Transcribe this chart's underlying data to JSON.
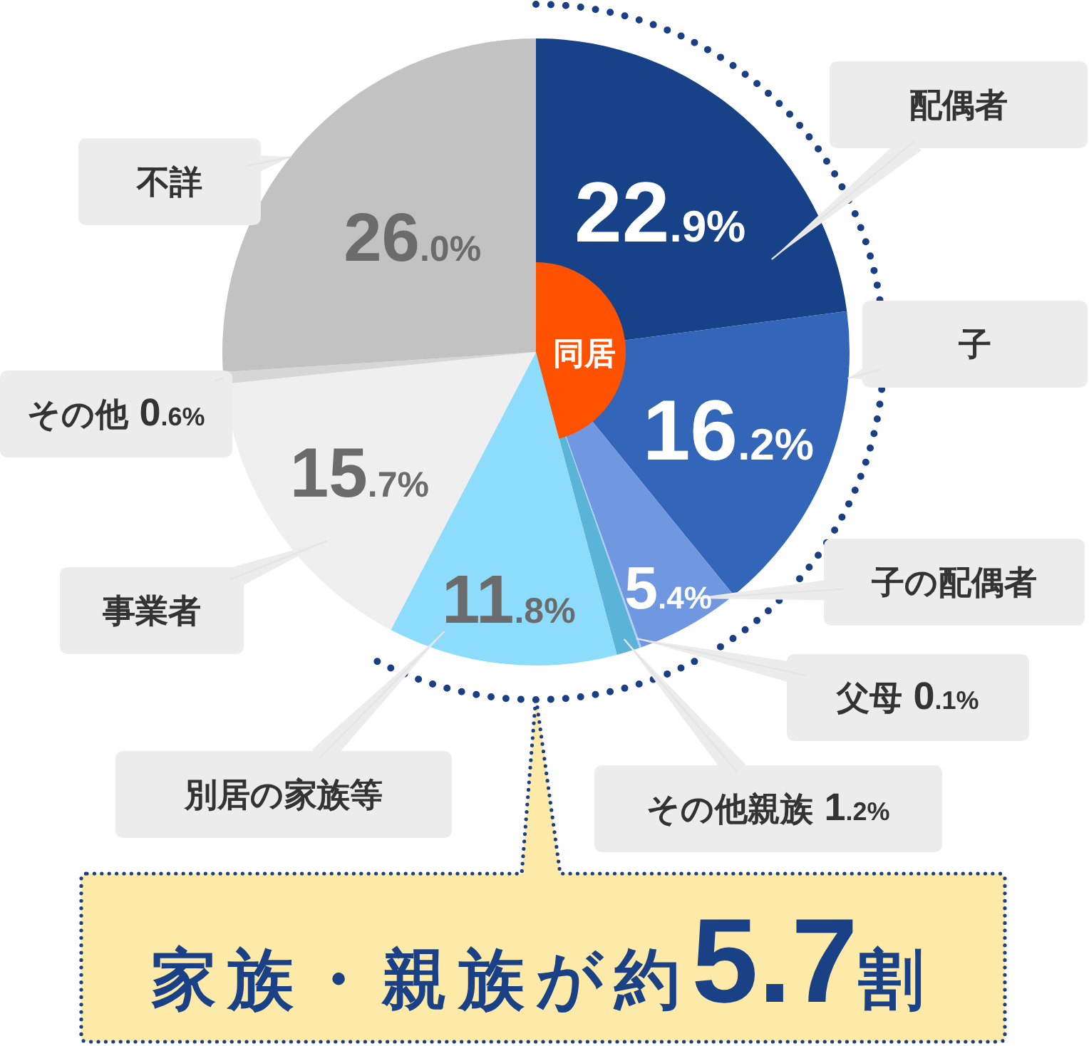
{
  "chart_data": {
    "type": "pie",
    "categories": [
      "配偶者",
      "子",
      "子の配偶者",
      "父母",
      "その他親族",
      "別居の家族等",
      "事業者",
      "その他",
      "不詳"
    ],
    "values": [
      22.9,
      16.2,
      5.4,
      0.1,
      1.2,
      11.8,
      15.7,
      0.6,
      26.0
    ],
    "colors": [
      "#174287",
      "#3366b8",
      "#6f98e0",
      "#b3cdf8",
      "#5ab4d8",
      "#8edcfc",
      "#efefef",
      "#d6d6d6",
      "#c2c2c2"
    ],
    "value_labels": [
      "22.9%",
      "16.2%",
      "5.4%",
      "0.1%",
      "1.2%",
      "11.8%",
      "15.7%",
      "0.6%",
      "26.0%"
    ],
    "annotations": [
      "同居",
      "家族・親族が約5.7割"
    ]
  }
}
